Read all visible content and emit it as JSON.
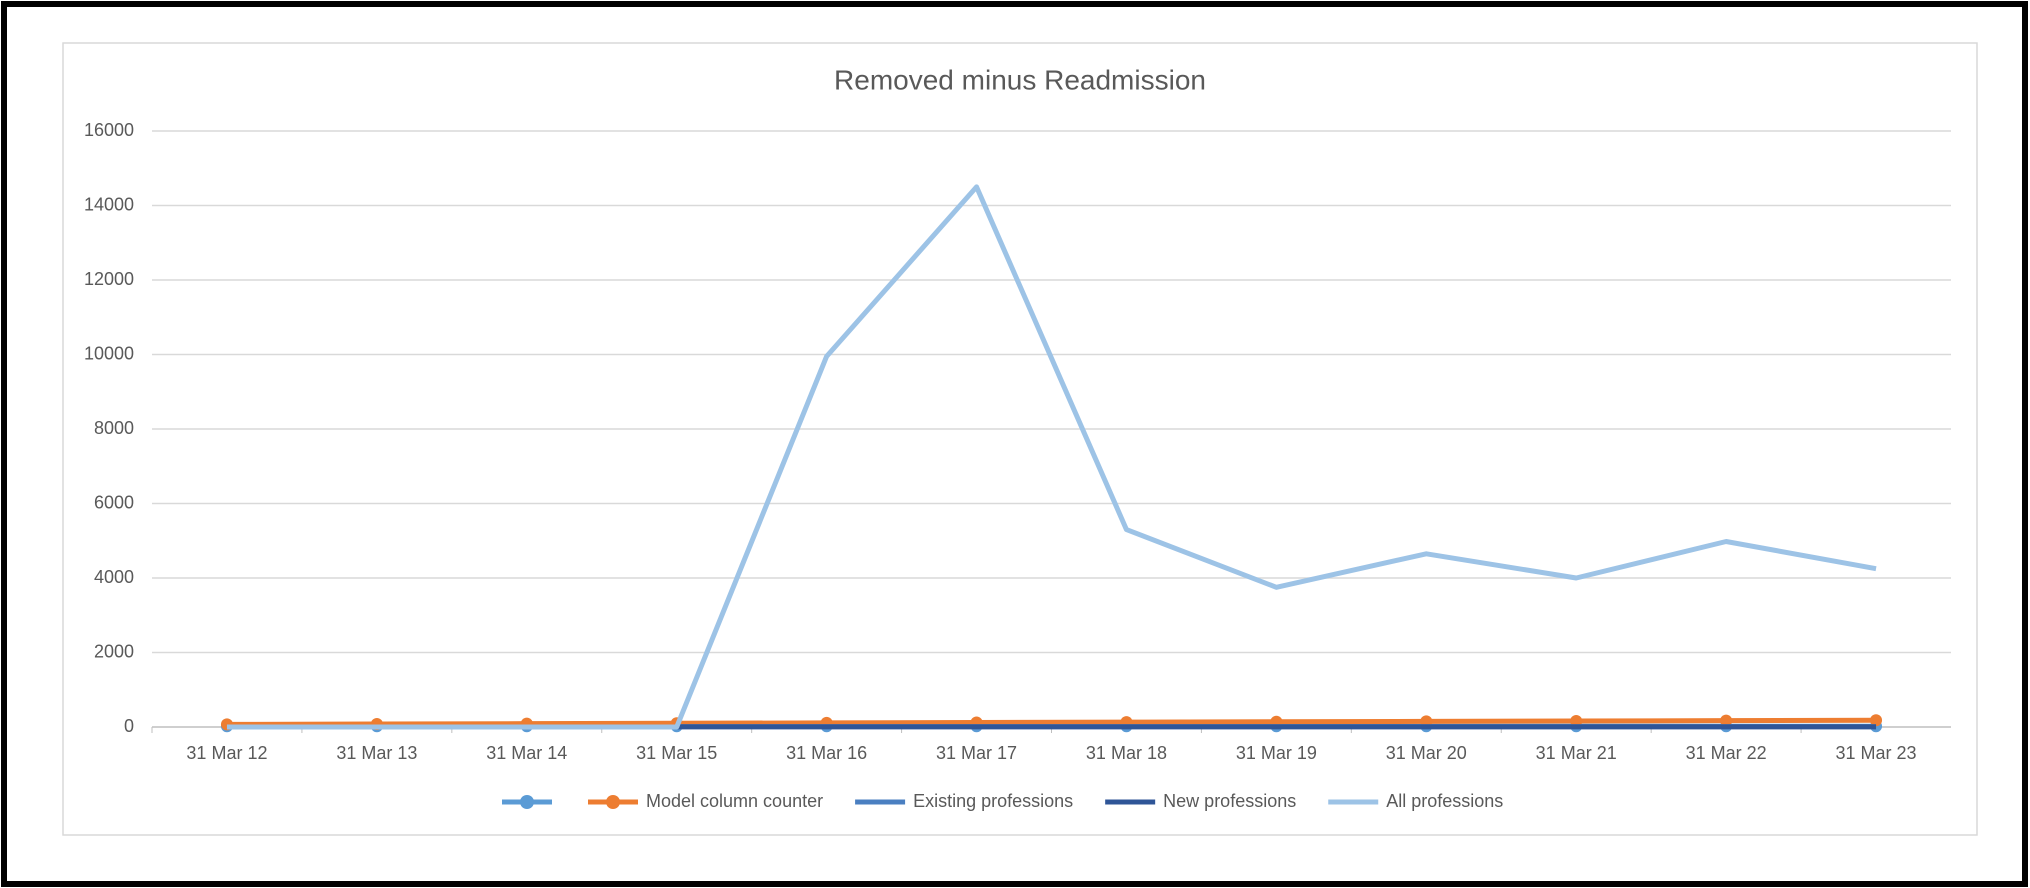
{
  "chart_data": {
    "type": "line",
    "title": "Removed minus Readmission",
    "categories": [
      "31 Mar 12",
      "31 Mar 13",
      "31 Mar 14",
      "31 Mar 15",
      "31 Mar 16",
      "31 Mar 17",
      "31 Mar 18",
      "31 Mar 19",
      "31 Mar 20",
      "31 Mar 21",
      "31 Mar 22",
      "31 Mar 23"
    ],
    "series": [
      {
        "color": "#5b9bd5",
        "markers": true,
        "values": [
          20,
          20,
          20,
          20,
          20,
          20,
          20,
          20,
          20,
          20,
          20,
          20
        ]
      },
      {
        "name": "Model column counter",
        "color": "#ed7d31",
        "markers": true,
        "values": [
          70,
          80,
          90,
          100,
          110,
          120,
          130,
          140,
          150,
          160,
          170,
          180
        ]
      },
      {
        "name": "Existing professions",
        "color": "#4a7fc1",
        "markers": false,
        "values": [
          null,
          null,
          null,
          10,
          10,
          10,
          10,
          10,
          10,
          10,
          10,
          10
        ]
      },
      {
        "name": "New professions",
        "color": "#2f5597",
        "markers": false,
        "values": [
          null,
          null,
          null,
          5,
          5,
          5,
          5,
          5,
          5,
          5,
          5,
          5
        ]
      },
      {
        "name": "All professions",
        "color": "#9dc3e6",
        "markers": false,
        "values": [
          0,
          0,
          0,
          0,
          9950,
          14500,
          5300,
          3750,
          4650,
          4000,
          4980,
          4250
        ]
      }
    ],
    "ylim": [
      0,
      16000
    ],
    "yticks": [
      0,
      2000,
      4000,
      6000,
      8000,
      10000,
      12000,
      14000,
      16000
    ],
    "grid": true,
    "legend": "bottom"
  }
}
